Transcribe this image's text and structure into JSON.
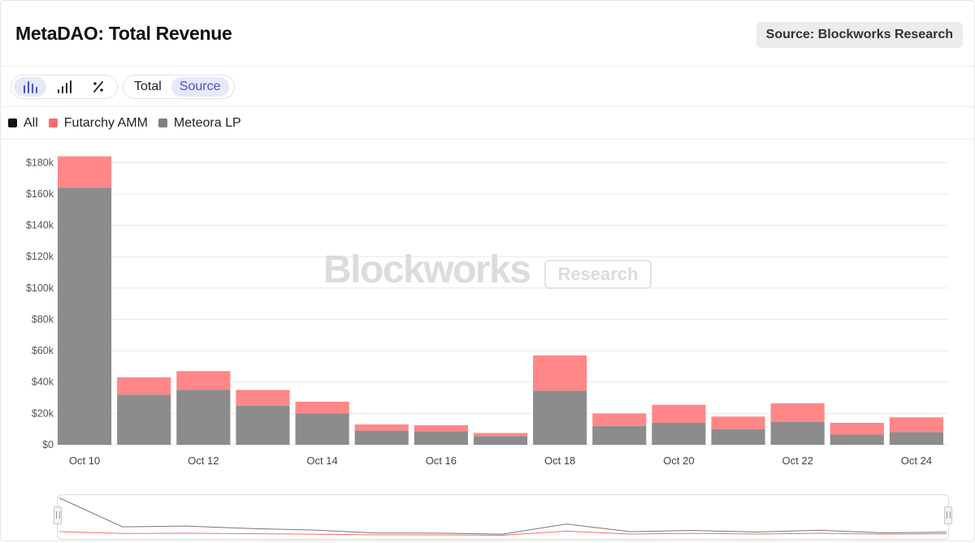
{
  "header": {
    "title": "MetaDAO: Total Revenue",
    "source_badge": "Source: Blockworks Research"
  },
  "toolbar": {
    "icon_buttons": [
      "bar-chart-icon",
      "signal-bars-icon",
      "percent-icon"
    ],
    "view_buttons": [
      {
        "label": "Total",
        "active": false
      },
      {
        "label": "Source",
        "active": true
      }
    ]
  },
  "legend": [
    {
      "label": "All",
      "color": "#111111"
    },
    {
      "label": "Futarchy AMM",
      "color": "#ff6b6b"
    },
    {
      "label": "Meteora LP",
      "color": "#7f7f7f"
    }
  ],
  "watermark": {
    "brand": "Blockworks",
    "tag": "Research"
  },
  "colors": {
    "futarchy_bar": "#ff8787",
    "meteora_bar": "#8c8c8c",
    "grid": "#e8e8e8",
    "active_accent": "#4a51c9"
  },
  "chart_data": {
    "type": "bar",
    "stacked": true,
    "categories": [
      "Oct 10",
      "Oct 11",
      "Oct 12",
      "Oct 13",
      "Oct 14",
      "Oct 15",
      "Oct 16",
      "Oct 17",
      "Oct 18",
      "Oct 19",
      "Oct 20",
      "Oct 21",
      "Oct 22",
      "Oct 23",
      "Oct 24"
    ],
    "x_tick_labels": [
      "Oct 10",
      "",
      "Oct 12",
      "",
      "Oct 14",
      "",
      "Oct 16",
      "",
      "Oct 18",
      "",
      "Oct 20",
      "",
      "Oct 22",
      "",
      "Oct 24"
    ],
    "series": [
      {
        "name": "Meteora LP",
        "values": [
          164000,
          32000,
          35000,
          25000,
          20000,
          9000,
          8500,
          5500,
          34500,
          12000,
          14000,
          10000,
          14500,
          6500,
          8000
        ]
      },
      {
        "name": "Futarchy AMM",
        "values": [
          20000,
          11000,
          12000,
          10000,
          7500,
          4000,
          4000,
          2000,
          22500,
          8000,
          11500,
          8000,
          12000,
          7500,
          9500
        ]
      }
    ],
    "y_ticks": [
      "$0",
      "$20k",
      "$40k",
      "$60k",
      "$80k",
      "$100k",
      "$120k",
      "$140k",
      "$160k",
      "$180k"
    ],
    "ylim": [
      0,
      190000
    ],
    "grid": true,
    "legend_position": "top-left"
  }
}
